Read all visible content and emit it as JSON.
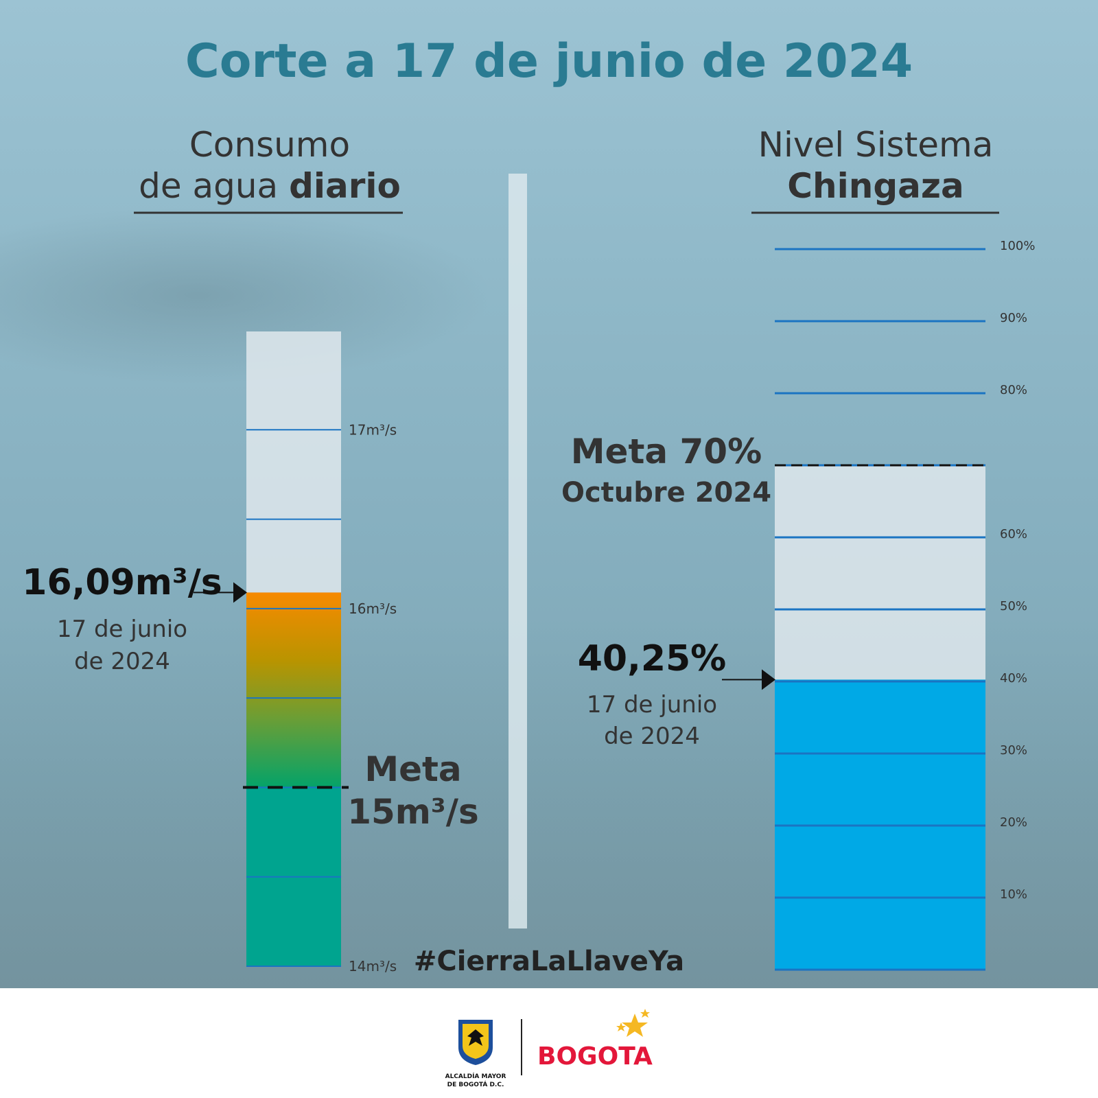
{
  "title": "Corte a 17 de junio de 2024",
  "hashtag": "#CierraLaLlaveYa",
  "footer": {
    "logo_left_text_1": "ALCALDÍA MAYOR",
    "logo_left_text_2": "DE BOGOTÁ D.C.",
    "logo_right_text": "BOGOTA"
  },
  "chart_data": [
    {
      "type": "bar",
      "title_line1": "Consumo",
      "title_line2_normal": "de agua ",
      "title_line2_bold": "diario",
      "ylim": [
        14,
        17.55
      ],
      "gridlines": [
        14,
        14.5,
        15,
        15.5,
        16,
        16.5,
        17
      ],
      "tick_labels": [
        {
          "value": 14,
          "label": "14m³/s"
        },
        {
          "value": 16,
          "label": "16m³/s"
        },
        {
          "value": 17,
          "label": "17m³/s"
        }
      ],
      "value": 16.09,
      "value_label": "16,09m³/s",
      "date_line1": "17 de junio",
      "date_line2": "de 2024",
      "target": 15,
      "target_line1": "Meta",
      "target_line2": "15m³/s",
      "colors": {
        "above": "#f78a00",
        "mid": "#08a36a",
        "below": "#00a48f",
        "empty": "#dfe8ec",
        "grid": "#1b74c2"
      }
    },
    {
      "type": "bar",
      "title_line1": "Nivel Sistema",
      "title_line2_bold": "Chingaza",
      "ylim": [
        0,
        100
      ],
      "gridlines": [
        0,
        10,
        20,
        30,
        40,
        50,
        60,
        70,
        80,
        90,
        100
      ],
      "tick_labels": [
        {
          "value": 10,
          "label": "10%"
        },
        {
          "value": 20,
          "label": "20%"
        },
        {
          "value": 30,
          "label": "30%"
        },
        {
          "value": 40,
          "label": "40%"
        },
        {
          "value": 50,
          "label": "50%"
        },
        {
          "value": 60,
          "label": "60%"
        },
        {
          "value": 80,
          "label": "80%"
        },
        {
          "value": 90,
          "label": "90%"
        },
        {
          "value": 100,
          "label": "100%"
        }
      ],
      "value": 40.25,
      "value_label": "40,25%",
      "date_line1": "17 de junio",
      "date_line2": "de 2024",
      "target": 70,
      "target_line1": "Meta 70%",
      "target_line2": "Octubre 2024",
      "colors": {
        "fill": "#00a9e6",
        "empty": "#dfe8ec",
        "grid": "#1b74c2"
      }
    }
  ]
}
